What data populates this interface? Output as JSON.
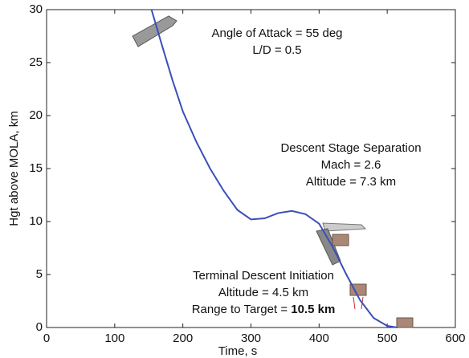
{
  "chart_data": {
    "type": "line",
    "xlabel": "Time, s",
    "ylabel": "Hgt above MOLA, km",
    "xlim": [
      0,
      600
    ],
    "ylim": [
      0,
      30
    ],
    "xticks": [
      0,
      100,
      200,
      300,
      400,
      500,
      600
    ],
    "yticks": [
      0,
      5,
      10,
      15,
      20,
      25,
      30
    ],
    "grid": false,
    "series": [
      {
        "color": "#3a4fb8",
        "x": [
          154,
          170,
          185,
          200,
          220,
          240,
          260,
          280,
          300,
          320,
          340,
          360,
          380,
          400,
          420,
          440,
          460,
          480,
          500,
          515
        ],
        "values": [
          30,
          26.5,
          23.3,
          20.4,
          17.5,
          15,
          12.9,
          11.1,
          10.2,
          10.3,
          10.8,
          11,
          10.7,
          9.8,
          7.6,
          5,
          2.6,
          0.9,
          0.15,
          0
        ]
      }
    ],
    "annotations": [
      {
        "lines": [
          "Angle of Attack = 55 deg",
          "L/D = 0.5"
        ]
      },
      {
        "lines": [
          "Descent Stage Separation",
          "Mach = 2.6",
          "Altitude = 7.3 km"
        ]
      },
      {
        "lines": [
          "Terminal Descent Initiation",
          "Altitude = 4.5 km"
        ],
        "last": {
          "text": "Range to Target = ",
          "bold": "10.5 km"
        }
      }
    ]
  }
}
